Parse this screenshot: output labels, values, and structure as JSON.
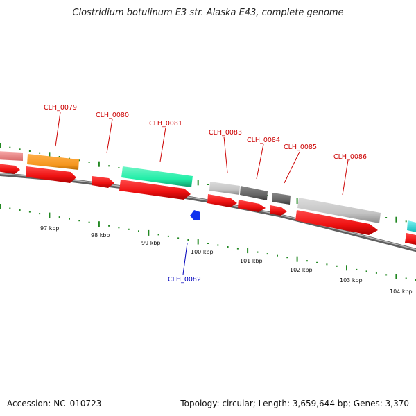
{
  "title": "Clostridium botulinum E3 str. Alaska E43, complete genome",
  "footer": {
    "accession": "Accession: NC_010723",
    "summary": "Topology: circular; Length: 3,659,644 bp; Genes: 3,370"
  },
  "colors": {
    "gene_red": "#ee1111",
    "gene_pink": "#f08a8a",
    "gene_orange": "#f5961e",
    "gene_teal": "#22eea8",
    "gene_lightgray": "#c4c4c4",
    "gene_darkgray": "#666666",
    "gene_cyan": "#22e8e8",
    "gene_blue": "#1133ee",
    "label_red": "#cc0000",
    "label_blue": "#0000bb",
    "tick_green": "#228822",
    "backbone": "#888888"
  },
  "scale_labels": [
    "97 kbp",
    "98 kbp",
    "99 kbp",
    "100 kbp",
    "101 kbp",
    "102 kbp",
    "103 kbp",
    "104 kbp"
  ],
  "gene_labels": [
    {
      "name": "CLH_0079",
      "color": "red"
    },
    {
      "name": "CLH_0080",
      "color": "red"
    },
    {
      "name": "CLH_0081",
      "color": "red"
    },
    {
      "name": "CLH_0083",
      "color": "red"
    },
    {
      "name": "CLH_0084",
      "color": "red"
    },
    {
      "name": "CLH_0085",
      "color": "red"
    },
    {
      "name": "CLH_0086",
      "color": "red"
    },
    {
      "name": "CLH_0082",
      "color": "blue"
    }
  ]
}
